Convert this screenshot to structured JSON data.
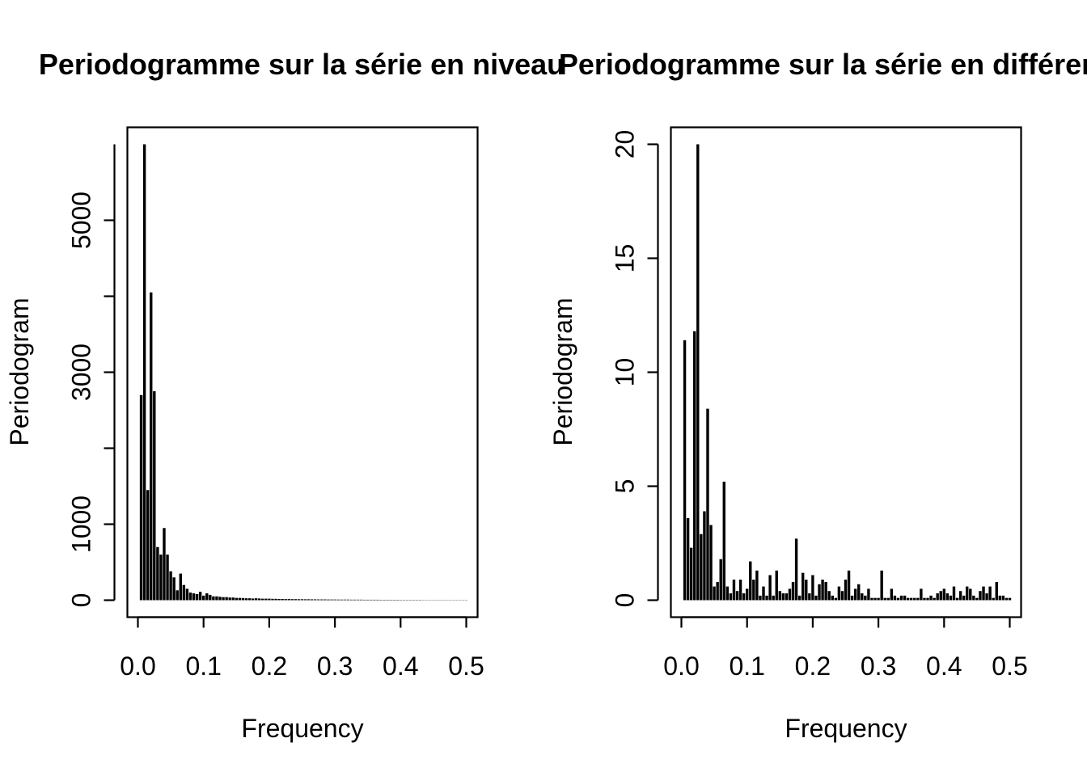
{
  "chart_data": [
    {
      "type": "bar",
      "title": "Periodogramme sur la série en niveau",
      "xlabel": "Frequency",
      "ylabel": "Periodogram",
      "xlim": [
        0,
        0.5
      ],
      "ylim": [
        0,
        6000
      ],
      "x_ticks": [
        "0.0",
        "0.1",
        "0.2",
        "0.3",
        "0.4",
        "0.5"
      ],
      "y_ticks": [
        0,
        1000,
        2000,
        3000,
        4000,
        5000
      ],
      "y_tick_labels": [
        "0",
        "1000",
        "",
        "3000",
        "",
        "5000"
      ],
      "grid": false,
      "x": [
        0.005,
        0.01,
        0.015,
        0.02,
        0.025,
        0.03,
        0.035,
        0.04,
        0.045,
        0.05,
        0.055,
        0.06,
        0.065,
        0.07,
        0.075,
        0.08,
        0.085,
        0.09,
        0.095,
        0.1,
        0.105,
        0.11,
        0.115,
        0.12,
        0.125,
        0.13,
        0.135,
        0.14,
        0.145,
        0.15,
        0.155,
        0.16,
        0.165,
        0.17,
        0.175,
        0.18,
        0.185,
        0.19,
        0.195,
        0.2,
        0.205,
        0.21,
        0.215,
        0.22,
        0.225,
        0.23,
        0.235,
        0.24,
        0.245,
        0.25,
        0.255,
        0.26,
        0.265,
        0.27,
        0.275,
        0.28,
        0.285,
        0.29,
        0.295,
        0.3,
        0.305,
        0.31,
        0.315,
        0.32,
        0.325,
        0.33,
        0.335,
        0.34,
        0.345,
        0.35,
        0.355,
        0.36,
        0.365,
        0.37,
        0.375,
        0.38,
        0.385,
        0.39,
        0.395,
        0.4,
        0.405,
        0.41,
        0.415,
        0.42,
        0.425,
        0.43,
        0.435,
        0.44,
        0.445,
        0.45,
        0.455,
        0.46,
        0.465,
        0.47,
        0.475,
        0.48,
        0.485,
        0.49,
        0.495,
        0.5
      ],
      "values": [
        2700,
        6000,
        1450,
        4050,
        2750,
        700,
        600,
        950,
        600,
        380,
        300,
        130,
        350,
        200,
        150,
        100,
        90,
        80,
        110,
        60,
        90,
        70,
        50,
        50,
        45,
        40,
        40,
        35,
        35,
        30,
        30,
        28,
        25,
        25,
        22,
        25,
        22,
        20,
        20,
        20,
        18,
        18,
        16,
        16,
        15,
        15,
        14,
        14,
        13,
        13,
        12,
        12,
        11,
        11,
        10,
        10,
        10,
        9,
        9,
        9,
        8,
        8,
        8,
        8,
        7,
        7,
        7,
        7,
        6,
        6,
        6,
        6,
        6,
        5,
        5,
        5,
        5,
        5,
        5,
        4,
        4,
        4,
        4,
        4,
        4,
        4,
        3,
        3,
        3,
        3,
        3,
        3,
        3,
        3,
        3,
        3,
        3,
        3,
        3,
        3
      ]
    },
    {
      "type": "bar",
      "title": "Periodogramme sur la série en différence",
      "xlabel": "Frequency",
      "ylabel": "Periodogram",
      "xlim": [
        0,
        0.5
      ],
      "ylim": [
        0,
        20
      ],
      "x_ticks": [
        "0.0",
        "0.1",
        "0.2",
        "0.3",
        "0.4",
        "0.5"
      ],
      "y_ticks": [
        0,
        5,
        10,
        15,
        20
      ],
      "y_tick_labels": [
        "0",
        "5",
        "10",
        "15",
        "20"
      ],
      "grid": false,
      "x": [
        0.005,
        0.01,
        0.015,
        0.02,
        0.025,
        0.03,
        0.035,
        0.04,
        0.045,
        0.05,
        0.055,
        0.06,
        0.065,
        0.07,
        0.075,
        0.08,
        0.085,
        0.09,
        0.095,
        0.1,
        0.105,
        0.11,
        0.115,
        0.12,
        0.125,
        0.13,
        0.135,
        0.14,
        0.145,
        0.15,
        0.155,
        0.16,
        0.165,
        0.17,
        0.175,
        0.18,
        0.185,
        0.19,
        0.195,
        0.2,
        0.205,
        0.21,
        0.215,
        0.22,
        0.225,
        0.23,
        0.235,
        0.24,
        0.245,
        0.25,
        0.255,
        0.26,
        0.265,
        0.27,
        0.275,
        0.28,
        0.285,
        0.29,
        0.295,
        0.3,
        0.305,
        0.31,
        0.315,
        0.32,
        0.325,
        0.33,
        0.335,
        0.34,
        0.345,
        0.35,
        0.355,
        0.36,
        0.365,
        0.37,
        0.375,
        0.38,
        0.385,
        0.39,
        0.395,
        0.4,
        0.405,
        0.41,
        0.415,
        0.42,
        0.425,
        0.43,
        0.435,
        0.44,
        0.445,
        0.45,
        0.455,
        0.46,
        0.465,
        0.47,
        0.475,
        0.48,
        0.485,
        0.49,
        0.495,
        0.5
      ],
      "values": [
        11.4,
        3.6,
        2.3,
        11.8,
        20,
        2.9,
        3.9,
        8.4,
        3.3,
        0.6,
        0.8,
        1.8,
        5.2,
        0.6,
        0.3,
        0.9,
        0.4,
        0.9,
        0.3,
        0.5,
        1.7,
        0.9,
        1.3,
        0.2,
        0.6,
        0.2,
        1.1,
        0.2,
        1.3,
        0.4,
        0.3,
        0.3,
        0.5,
        0.8,
        2.7,
        0.2,
        1.2,
        0.9,
        0.3,
        1.1,
        0.2,
        0.7,
        0.9,
        0.8,
        0.4,
        0.2,
        0.1,
        0.6,
        0.4,
        0.9,
        1.3,
        0.2,
        0.5,
        0.7,
        0.3,
        0.2,
        0.5,
        0.1,
        0.1,
        0.1,
        1.3,
        0.1,
        0.1,
        0.5,
        0.2,
        0.1,
        0.2,
        0.2,
        0.1,
        0.1,
        0.1,
        0.1,
        0.5,
        0.1,
        0.1,
        0.2,
        0.1,
        0.3,
        0.4,
        0.5,
        0.3,
        0.2,
        0.6,
        0.1,
        0.4,
        0.2,
        0.6,
        0.5,
        0.2,
        0.1,
        0.4,
        0.6,
        0.3,
        0.6,
        0.1,
        0.8,
        0.2,
        0.2,
        0.1,
        0.1
      ]
    }
  ]
}
